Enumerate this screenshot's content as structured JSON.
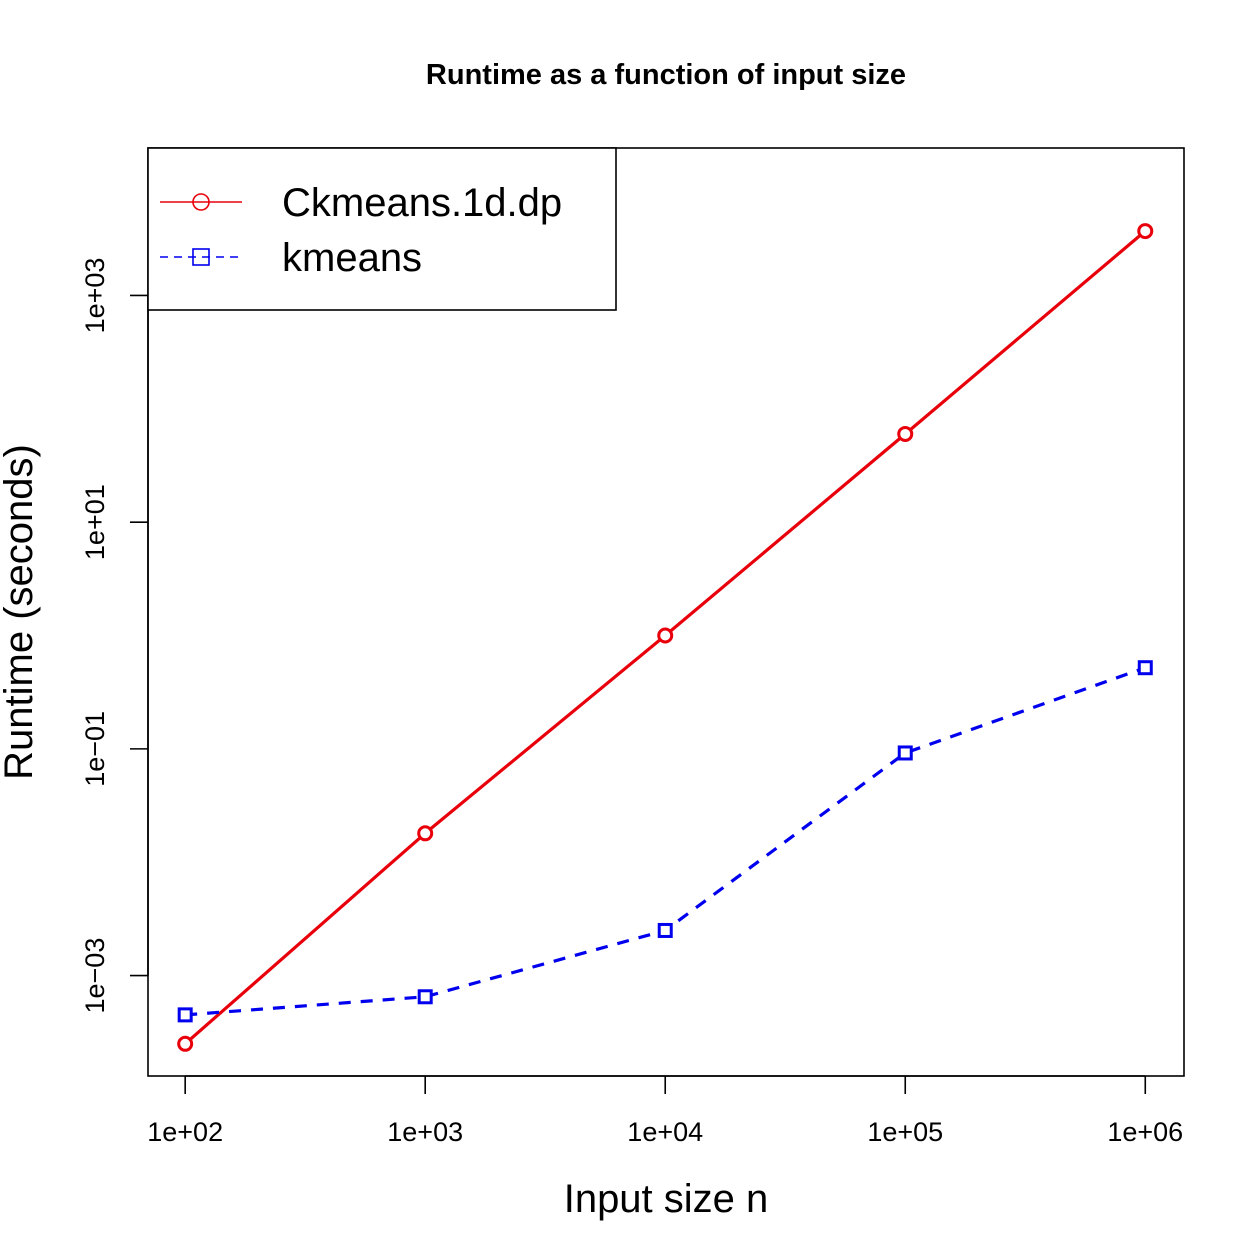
{
  "chart_data": {
    "type": "line",
    "title": "Runtime as a function of input size",
    "xlabel": "Input size n",
    "ylabel": "Runtime (seconds)",
    "x_scale": "log",
    "y_scale": "log",
    "x": [
      100,
      1000,
      10000,
      100000,
      1000000
    ],
    "x_tick_values": [
      100,
      1000,
      10000,
      100000,
      1000000
    ],
    "x_tick_labels": [
      "1e+02",
      "1e+03",
      "1e+04",
      "1e+05",
      "1e+06"
    ],
    "y_tick_values": [
      0.001,
      0.1,
      10,
      1000
    ],
    "y_tick_labels": [
      "1e−03",
      "1e−01",
      "1e+01",
      "1e+03"
    ],
    "xlim": [
      70,
      1450000
    ],
    "ylim": [
      0.00013,
      20000
    ],
    "grid": false,
    "legend_position": "top-left",
    "series": [
      {
        "name": "Ckmeans.1d.dp",
        "values": [
          0.00025,
          0.018,
          1.0,
          60,
          3700
        ],
        "color": "#e8000b",
        "line_style": "solid",
        "marker": "circle"
      },
      {
        "name": "kmeans",
        "values": [
          0.00045,
          0.00065,
          0.0025,
          0.092,
          0.52
        ],
        "color": "#0000ee",
        "line_style": "dashed",
        "marker": "square"
      }
    ]
  }
}
